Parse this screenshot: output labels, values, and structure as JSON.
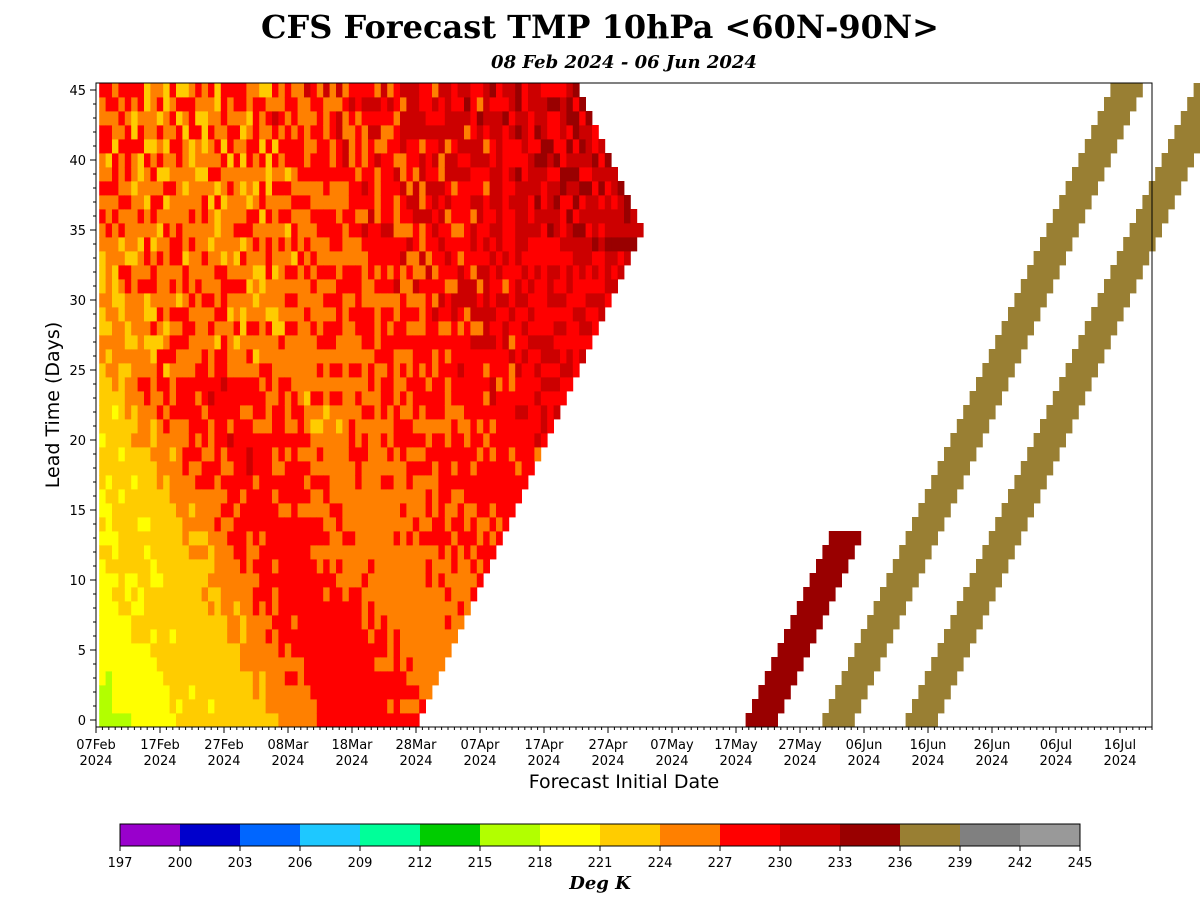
{
  "title": "CFS Forecast TMP 10hPa <60N-90N>",
  "subtitle": "08 Feb 2024 - 06 Jun 2024",
  "chart_data": {
    "type": "heatmap",
    "xlabel": "Forecast Initial Date",
    "ylabel": "Lead Time (Days)",
    "x_ticks": [
      {
        "line1": "07Feb",
        "line2": "2024",
        "date": "2024-02-07"
      },
      {
        "line1": "17Feb",
        "line2": "2024",
        "date": "2024-02-17"
      },
      {
        "line1": "27Feb",
        "line2": "2024",
        "date": "2024-02-27"
      },
      {
        "line1": "08Mar",
        "line2": "2024",
        "date": "2024-03-08"
      },
      {
        "line1": "18Mar",
        "line2": "2024",
        "date": "2024-03-18"
      },
      {
        "line1": "28Mar",
        "line2": "2024",
        "date": "2024-03-28"
      },
      {
        "line1": "07Apr",
        "line2": "2024",
        "date": "2024-04-07"
      },
      {
        "line1": "17Apr",
        "line2": "2024",
        "date": "2024-04-17"
      },
      {
        "line1": "27Apr",
        "line2": "2024",
        "date": "2024-04-27"
      },
      {
        "line1": "07May",
        "line2": "2024",
        "date": "2024-05-07"
      },
      {
        "line1": "17May",
        "line2": "2024",
        "date": "2024-05-17"
      },
      {
        "line1": "27May",
        "line2": "2024",
        "date": "2024-05-27"
      },
      {
        "line1": "06Jun",
        "line2": "2024",
        "date": "2024-06-06"
      },
      {
        "line1": "16Jun",
        "line2": "2024",
        "date": "2024-06-16"
      },
      {
        "line1": "26Jun",
        "line2": "2024",
        "date": "2024-06-26"
      },
      {
        "line1": "06Jul",
        "line2": "2024",
        "date": "2024-07-06"
      },
      {
        "line1": "16Jul",
        "line2": "2024",
        "date": "2024-07-16"
      }
    ],
    "x_range": [
      "2024-02-07",
      "2024-07-21"
    ],
    "y_ticks": [
      0,
      5,
      10,
      15,
      20,
      25,
      30,
      35,
      40,
      45
    ],
    "y_range": [
      -0.5,
      45.5
    ],
    "colorbar": {
      "label": "Deg K",
      "boundaries": [
        197,
        200,
        203,
        206,
        209,
        212,
        215,
        218,
        221,
        224,
        227,
        230,
        233,
        236,
        239,
        242,
        245
      ],
      "colors": [
        "#9900cc",
        "#0000cc",
        "#0066ff",
        "#1ec8ff",
        "#00ff99",
        "#00cc00",
        "#b2ff00",
        "#ffff00",
        "#ffcc00",
        "#ff8000",
        "#ff0000",
        "#cc0000",
        "#990000",
        "#997f33",
        "#808080",
        "#999999"
      ]
    },
    "regions": [
      {
        "name": "forecast-grid",
        "init_start": "2024-02-08",
        "init_end": "2024-03-28",
        "lead_max": 45,
        "valid_end": "2024-06-06",
        "temperature_trend": "warming from ~221 K to ~230 K (with 233-236 K pockets near early-mid March)"
      },
      {
        "name": "late-may-band",
        "init_start": "2024-05-19",
        "init_end": "2024-05-29",
        "lead_max": 13,
        "level": 234
      },
      {
        "name": "band-a",
        "init_start": "2024-05-31",
        "lead_max": 45,
        "level": 237
      },
      {
        "name": "band-b",
        "init_start": "2024-06-13",
        "lead_max": 45,
        "level": 237
      }
    ]
  }
}
